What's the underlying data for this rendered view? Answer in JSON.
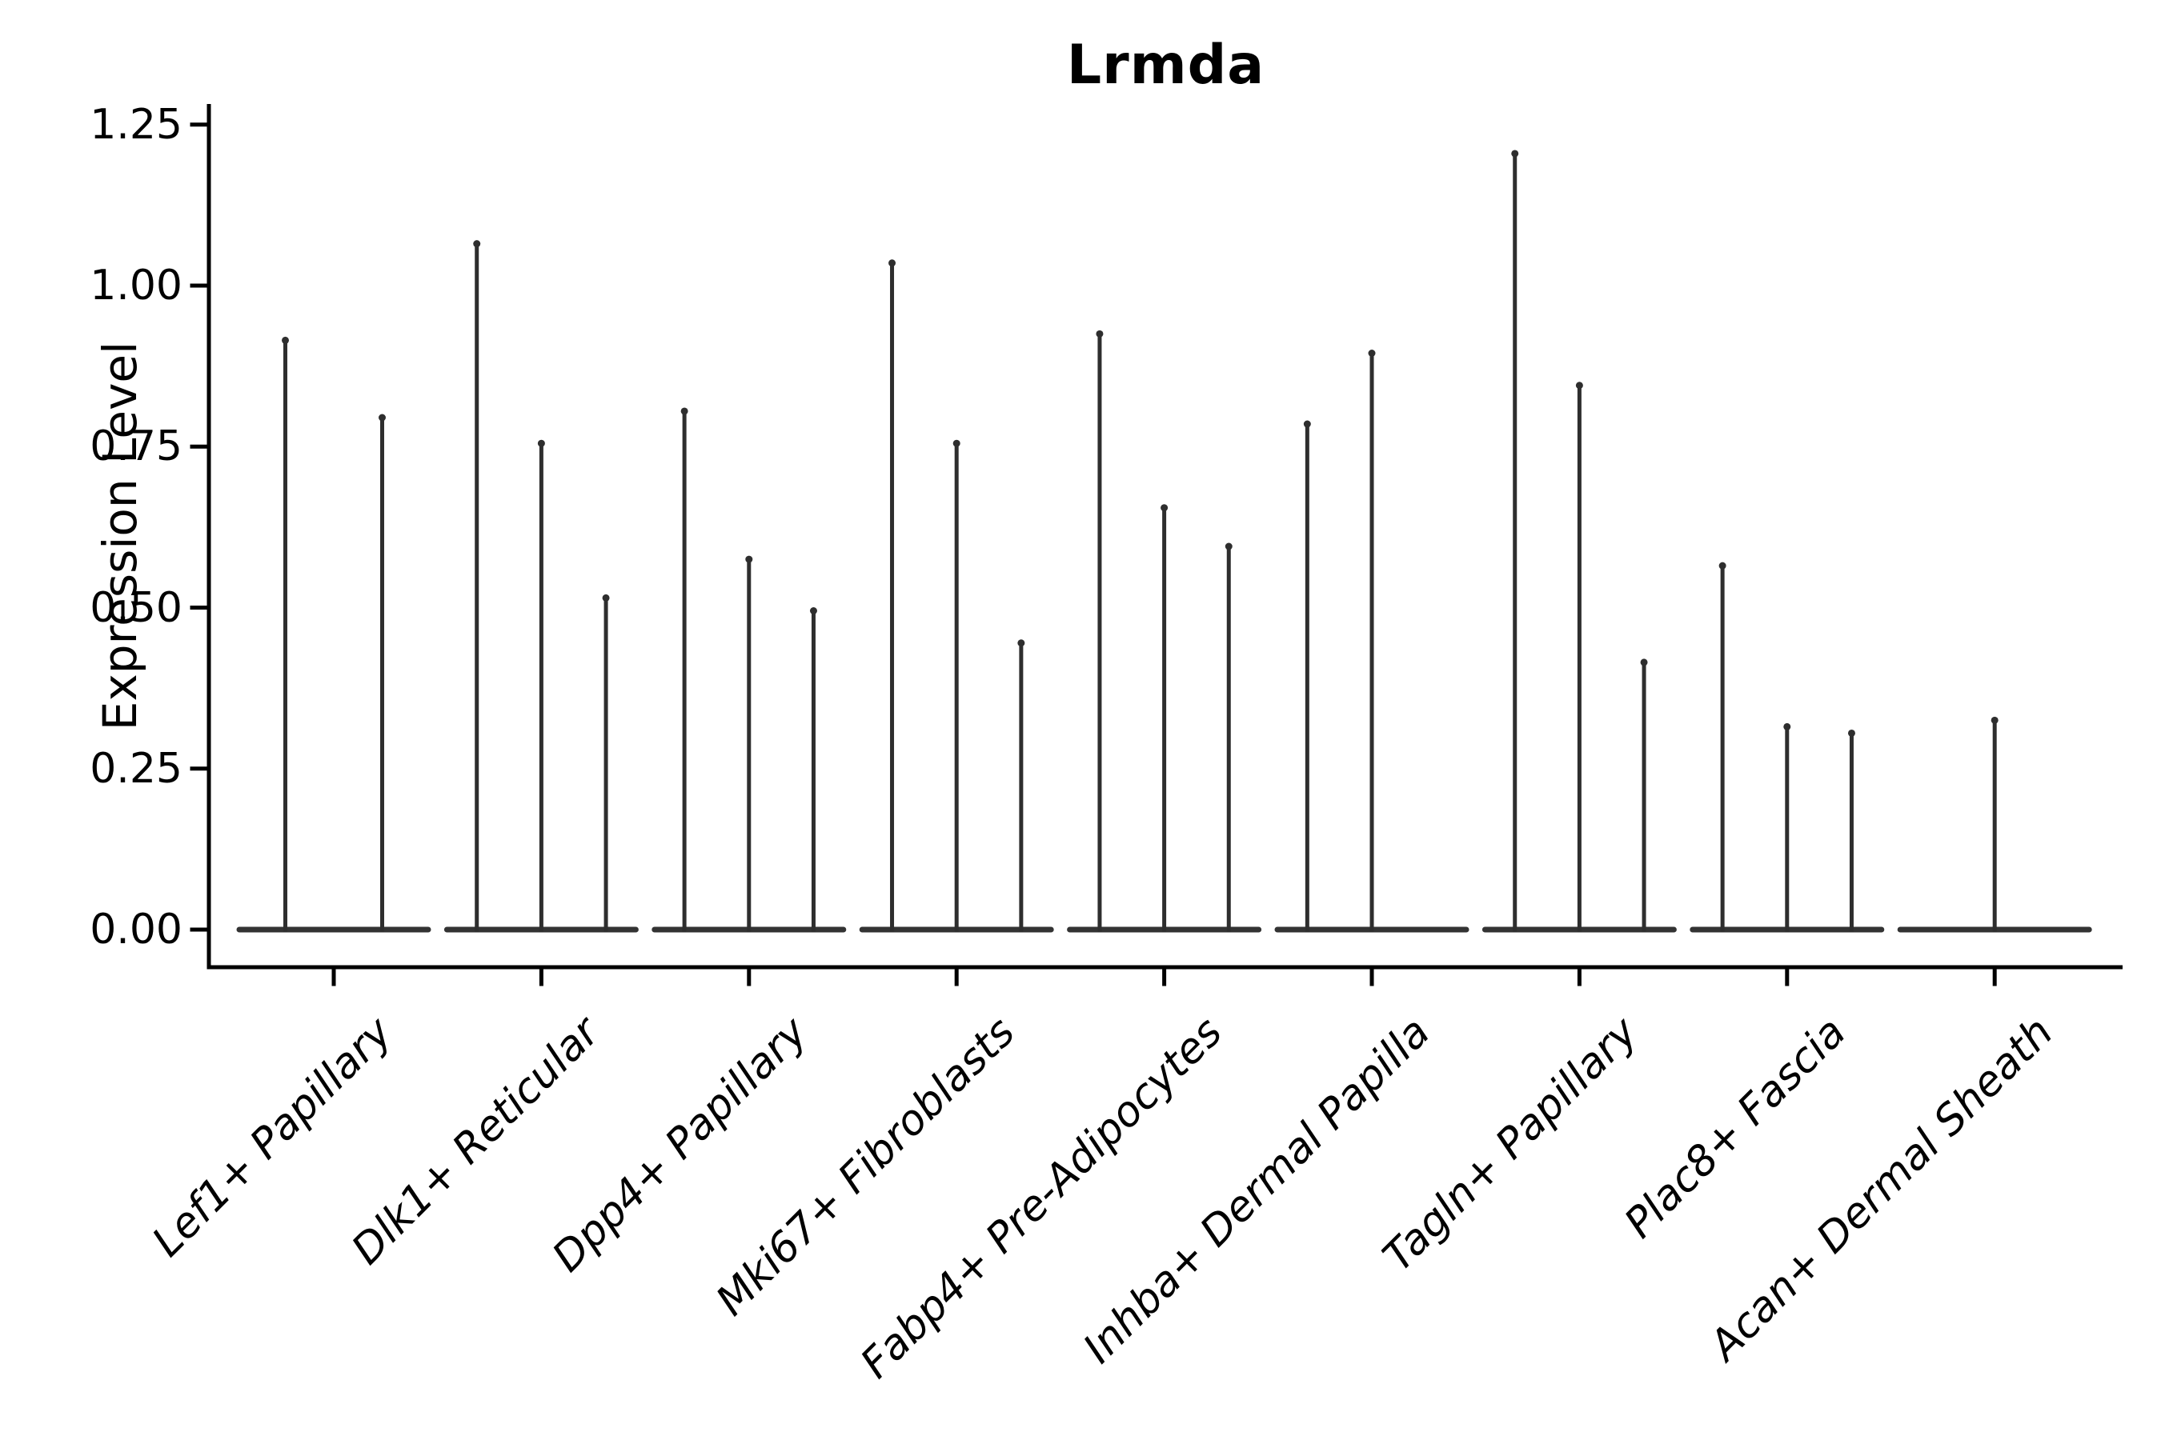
{
  "chart_data": {
    "type": "violin",
    "title": "Lrmda",
    "ylabel": "Expression Level",
    "xlabel": "",
    "ylim": [
      0,
      1.27
    ],
    "grid": false,
    "legend": "none",
    "yticks": [
      0.0,
      0.25,
      0.5,
      0.75,
      1.0,
      1.25
    ],
    "ytick_labels": [
      "0.00",
      "0.25",
      "0.50",
      "0.75",
      "1.00",
      "1.25"
    ],
    "categories": [
      "Lef1+ Papillary",
      "Dlk1+ Reticular",
      "Dpp4+ Papillary",
      "Mki67+ Fibroblasts",
      "Fabp4+ Pre-Adipocytes",
      "Inhba+ Dermal Papilla",
      "Tagln+ Papillary",
      "Plac8+ Fascia",
      "Acan+ Dermal Sheath"
    ],
    "violin_peaks": [
      [
        0.92,
        0.8
      ],
      [
        1.07,
        0.76,
        0.52
      ],
      [
        0.81,
        0.58,
        0.5
      ],
      [
        1.04,
        0.76,
        0.45
      ],
      [
        0.93,
        0.66,
        0.6
      ],
      [
        0.79,
        0.9,
        null
      ],
      [
        1.21,
        0.85,
        0.42
      ],
      [
        0.57,
        0.32,
        0.31
      ],
      [
        0.33
      ]
    ],
    "baseline_value": 0.0,
    "colors": {
      "violin": "#2e2e2e",
      "baseline": "#333333",
      "axis": "#000000",
      "text": "#000000",
      "background": "#ffffff"
    }
  }
}
